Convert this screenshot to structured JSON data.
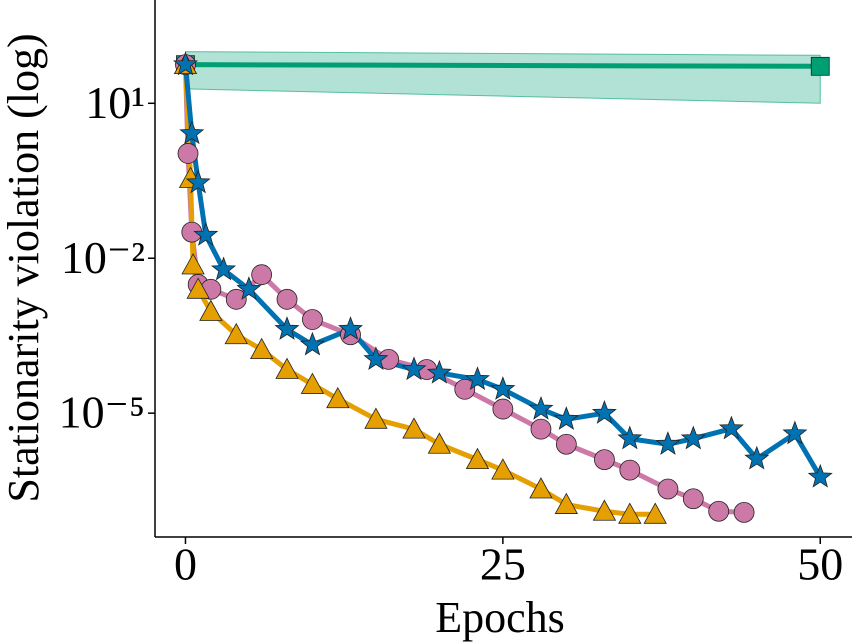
{
  "chart_data": {
    "type": "line",
    "y_label": "Stationarity violation (log)",
    "x_label": "Epochs",
    "xlim": [
      -2.4,
      52.5
    ],
    "xticks": [
      0,
      25,
      50
    ],
    "ylim": [
      4e-08,
      1000
    ],
    "yscale": "log",
    "yticks": [
      {
        "value": 10,
        "label": "10¹"
      },
      {
        "value": 0.01,
        "label": "10⁻²"
      },
      {
        "value": 1e-05,
        "label": "10⁻⁵"
      }
    ],
    "series": [
      {
        "color": "#009E73",
        "marker": "square",
        "x": [
          0,
          50
        ],
        "values": [
          56,
          52
        ],
        "lower": [
          19,
          10
        ],
        "upper": [
          100,
          85
        ]
      },
      {
        "color": "#CC79A7",
        "marker": "circle",
        "x": [
          0,
          0.2,
          0.5,
          1,
          2,
          4,
          6,
          8,
          10,
          13,
          16,
          19,
          22,
          25,
          28,
          30,
          33,
          35,
          38,
          40,
          42,
          44
        ],
        "values": [
          56,
          1.07,
          0.032,
          0.0031,
          0.0025,
          0.0016,
          0.0048,
          0.0016,
          0.00065,
          0.00033,
          0.00011,
          7e-05,
          2.9e-05,
          1.2e-05,
          4.9e-06,
          2.5e-06,
          1.26e-06,
          7.9e-07,
          3.4e-07,
          2.2e-07,
          1.26e-07,
          1.2e-07
        ]
      },
      {
        "color": "#E69F00",
        "marker": "triangle",
        "x": [
          0,
          0.4,
          0.6,
          1,
          2,
          4,
          6,
          8,
          10,
          12,
          15,
          18,
          20,
          23,
          25,
          28,
          30,
          33,
          35,
          37
        ],
        "values": [
          56,
          0.35,
          0.0074,
          0.0025,
          0.00093,
          0.00033,
          0.00017,
          7e-05,
          3.6e-05,
          1.9e-05,
          7.6e-06,
          4.9e-06,
          2.5e-06,
          1.26e-06,
          7.9e-07,
          3.4e-07,
          1.7e-07,
          1.26e-07,
          1.1e-07,
          1.1e-07
        ]
      },
      {
        "color": "#0072B2",
        "marker": "star",
        "x": [
          0,
          0.5,
          1,
          1.6,
          3,
          5,
          8,
          10,
          13,
          15,
          18,
          20,
          23,
          25,
          28,
          30,
          33,
          35,
          38,
          40,
          43,
          45,
          48,
          50
        ],
        "values": [
          56,
          2.6,
          0.29,
          0.028,
          0.006,
          0.0025,
          0.00042,
          0.00021,
          0.00042,
          0.00011,
          7e-05,
          6e-05,
          4.5e-05,
          2.9e-05,
          1.2e-05,
          7.6e-06,
          1e-05,
          3.2e-06,
          2.5e-06,
          3.2e-06,
          5e-06,
          1.3e-06,
          4e-06,
          5.8e-07
        ]
      }
    ]
  }
}
